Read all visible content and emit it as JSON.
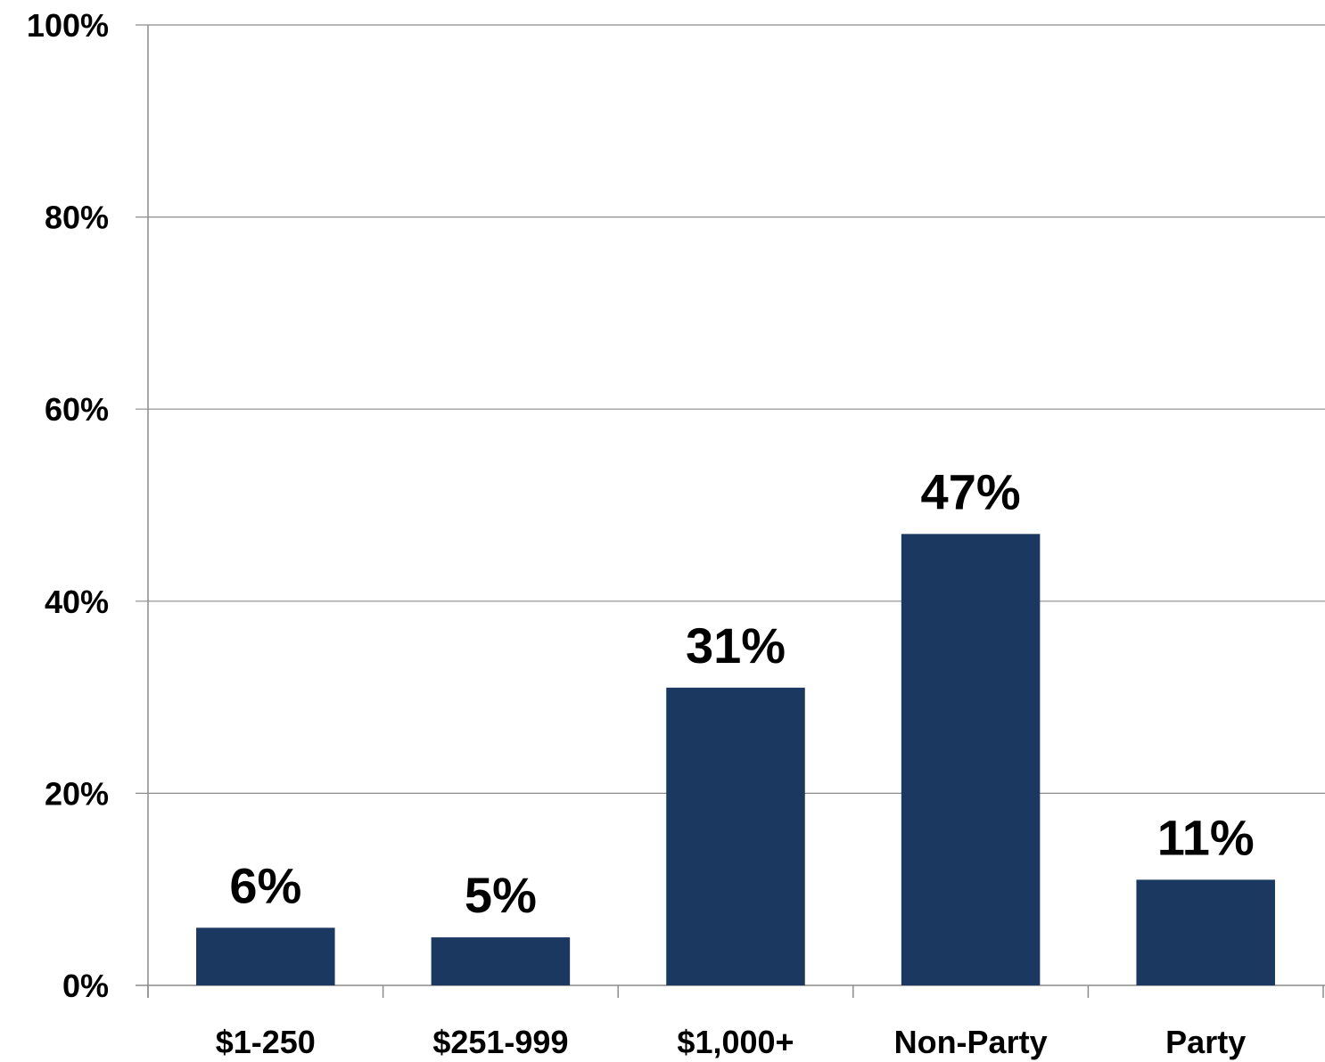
{
  "chart_data": {
    "type": "bar",
    "categories": [
      "$1-250",
      "$251-999",
      "$1,000+",
      "Non-Party",
      "Party"
    ],
    "values": [
      6,
      5,
      31,
      47,
      11
    ],
    "data_labels": [
      "6%",
      "5%",
      "31%",
      "47%",
      "11%"
    ],
    "title": "",
    "xlabel": "",
    "ylabel": "",
    "ylim": [
      0,
      100
    ],
    "yticks": [
      0,
      20,
      40,
      60,
      80,
      100
    ],
    "ytick_labels": [
      "0%",
      "20%",
      "40%",
      "60%",
      "80%",
      "100%"
    ],
    "grid": true,
    "legend": "none",
    "bar_color": "#1b3860"
  }
}
